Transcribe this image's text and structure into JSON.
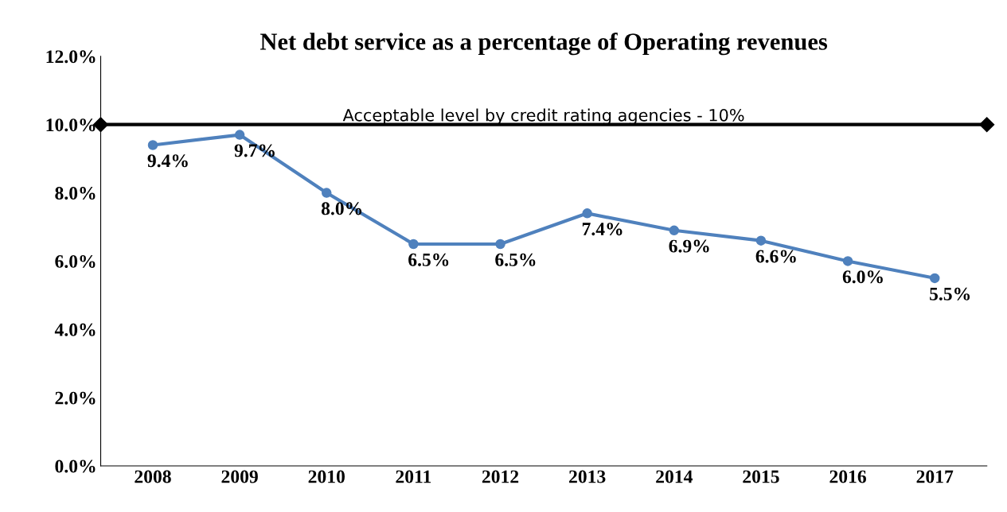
{
  "chart_data": {
    "type": "line",
    "title": "Net debt service as a percentage of Operating revenues",
    "categories": [
      "2008",
      "2009",
      "2010",
      "2011",
      "2012",
      "2013",
      "2014",
      "2015",
      "2016",
      "2017"
    ],
    "series": [
      {
        "color": "#4f81bd",
        "values": [
          9.4,
          9.7,
          8.0,
          6.5,
          6.5,
          7.4,
          6.9,
          6.6,
          6.0,
          5.5
        ],
        "value_labels": [
          "9.4%",
          "9.7%",
          "8.0%",
          "6.5%",
          "6.5%",
          "7.4%",
          "6.9%",
          "6.6%",
          "6.0%",
          "5.5%"
        ]
      }
    ],
    "ylim": [
      0,
      12
    ],
    "yticks": [
      {
        "value": 0,
        "label": "0.0%"
      },
      {
        "value": 2,
        "label": "2.0%"
      },
      {
        "value": 4,
        "label": "4.0%"
      },
      {
        "value": 6,
        "label": "6.0%"
      },
      {
        "value": 8,
        "label": "8.0%"
      },
      {
        "value": 10,
        "label": "10.0%"
      },
      {
        "value": 12,
        "label": "12.0%"
      }
    ],
    "ref_lines": [
      {
        "axis": "y",
        "value": 10,
        "label": "Acceptable level by credit rating agencies - 10%",
        "color": "#000000"
      }
    ],
    "marker": "circle",
    "line_style": "solid",
    "grid": false,
    "legend": false
  }
}
